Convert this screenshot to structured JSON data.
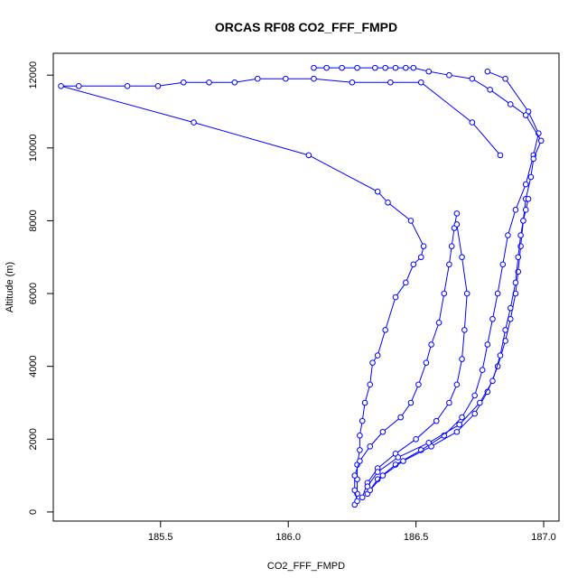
{
  "chart_data": {
    "type": "line",
    "title": "ORCAS RF08 CO2_FFF_FMPD",
    "xlabel": "CO2_FFF_FMPD",
    "ylabel": "Altitude (m)",
    "xlim": [
      185.08,
      187.06
    ],
    "ylim": [
      -250,
      12600
    ],
    "xticks": [
      185.5,
      186.0,
      186.5,
      187.0
    ],
    "xtick_labels": [
      "185.5",
      "186.0",
      "186.5",
      "187.0"
    ],
    "yticks": [
      0,
      2000,
      4000,
      6000,
      8000,
      10000,
      12000
    ],
    "ytick_labels": [
      "0",
      "2000",
      "4000",
      "6000",
      "8000",
      "10000",
      "12000"
    ],
    "color": "#0000ff",
    "marker": "open-circle",
    "grid": false,
    "series": [
      {
        "x": [
          186.26,
          186.27,
          186.27,
          186.27,
          186.28,
          186.28,
          186.29,
          186.3,
          186.32,
          186.33,
          186.35,
          186.38,
          186.42,
          186.46,
          186.49,
          186.52,
          186.53,
          186.48,
          186.39,
          186.35,
          186.08,
          185.63,
          185.11,
          185.18,
          185.37,
          185.49,
          185.59,
          185.69,
          185.79,
          185.88,
          185.99,
          186.1,
          186.25,
          186.4,
          186.52,
          186.72,
          186.83
        ],
        "y": [
          200,
          500,
          900,
          1300,
          1700,
          2100,
          2500,
          3000,
          3500,
          4100,
          4300,
          5000,
          5900,
          6300,
          6800,
          7000,
          7300,
          8000,
          8500,
          8800,
          9800,
          10700,
          11700,
          11700,
          11700,
          11700,
          11800,
          11800,
          11800,
          11900,
          11900,
          11900,
          11800,
          11800,
          11800,
          10700,
          9800
        ]
      },
      {
        "x": [
          186.27,
          186.26,
          186.26,
          186.28,
          186.32,
          186.37,
          186.44,
          186.48,
          186.51,
          186.54,
          186.56,
          186.59,
          186.61,
          186.63,
          186.64,
          186.65,
          186.66
        ],
        "y": [
          300,
          600,
          1000,
          1400,
          1800,
          2200,
          2600,
          3000,
          3500,
          4100,
          4600,
          5200,
          6000,
          6800,
          7300,
          7800,
          8200
        ],
        "points": [
          [
            186.27,
            300
          ],
          [
            186.26,
            600
          ],
          [
            186.26,
            1000
          ],
          [
            186.28,
            1400
          ],
          [
            186.32,
            1800
          ],
          [
            186.37,
            2200
          ],
          [
            186.44,
            2600
          ],
          [
            186.48,
            3000
          ],
          [
            186.51,
            3500
          ],
          [
            186.54,
            4100
          ],
          [
            186.56,
            4600
          ],
          [
            186.59,
            5200
          ],
          [
            186.61,
            6000
          ],
          [
            186.63,
            6800
          ],
          [
            186.64,
            7300
          ],
          [
            186.65,
            7800
          ],
          [
            186.66,
            8200
          ]
        ]
      },
      {
        "x": [
          186.29,
          186.31,
          186.35,
          186.42,
          186.5,
          186.58,
          186.63,
          186.66,
          186.68,
          186.69,
          186.7,
          186.68,
          186.66
        ],
        "y": [
          400,
          800,
          1200,
          1600,
          2000,
          2500,
          3000,
          3500,
          4200,
          5000,
          6000,
          7000,
          7900
        ]
      },
      {
        "x": [
          186.31,
          186.35,
          186.42,
          186.52,
          186.61,
          186.68,
          186.73,
          186.76,
          186.78,
          186.8,
          186.82,
          186.84,
          186.86,
          186.89,
          186.93,
          186.96,
          186.98,
          186.94,
          186.85,
          186.78
        ],
        "y": [
          500,
          900,
          1300,
          1700,
          2100,
          2600,
          3200,
          3900,
          4600,
          5300,
          6000,
          6800,
          7600,
          8300,
          9000,
          9800,
          10400,
          11000,
          11900,
          12100
        ]
      },
      {
        "x": [
          186.32,
          186.37,
          186.45,
          186.56,
          186.66,
          186.73,
          186.78,
          186.82,
          186.85,
          186.87,
          186.89,
          186.9,
          186.91,
          186.92,
          186.93,
          186.95,
          186.96,
          186.99,
          186.93,
          186.87,
          186.79,
          186.72,
          186.63,
          186.55,
          186.49,
          186.46,
          186.42,
          186.38,
          186.34,
          186.27,
          186.21,
          186.15,
          186.1
        ],
        "y": [
          600,
          1000,
          1400,
          1800,
          2200,
          2700,
          3300,
          4000,
          4700,
          5300,
          6000,
          6600,
          7300,
          8000,
          8600,
          9200,
          9700,
          10200,
          10900,
          11200,
          11600,
          11900,
          12000,
          12100,
          12200,
          12200,
          12200,
          12200,
          12200,
          12200,
          12200,
          12200,
          12200
        ]
      },
      {
        "x": [
          186.31,
          186.35,
          186.43,
          186.55,
          186.67,
          186.75,
          186.8,
          186.83,
          186.85,
          186.87,
          186.89,
          186.9,
          186.91,
          186.92,
          186.93,
          186.94
        ],
        "y": [
          700,
          1100,
          1500,
          1900,
          2400,
          3000,
          3600,
          4300,
          5000,
          5600,
          6300,
          7000,
          7600,
          8000,
          8300,
          8600
        ]
      }
    ]
  }
}
